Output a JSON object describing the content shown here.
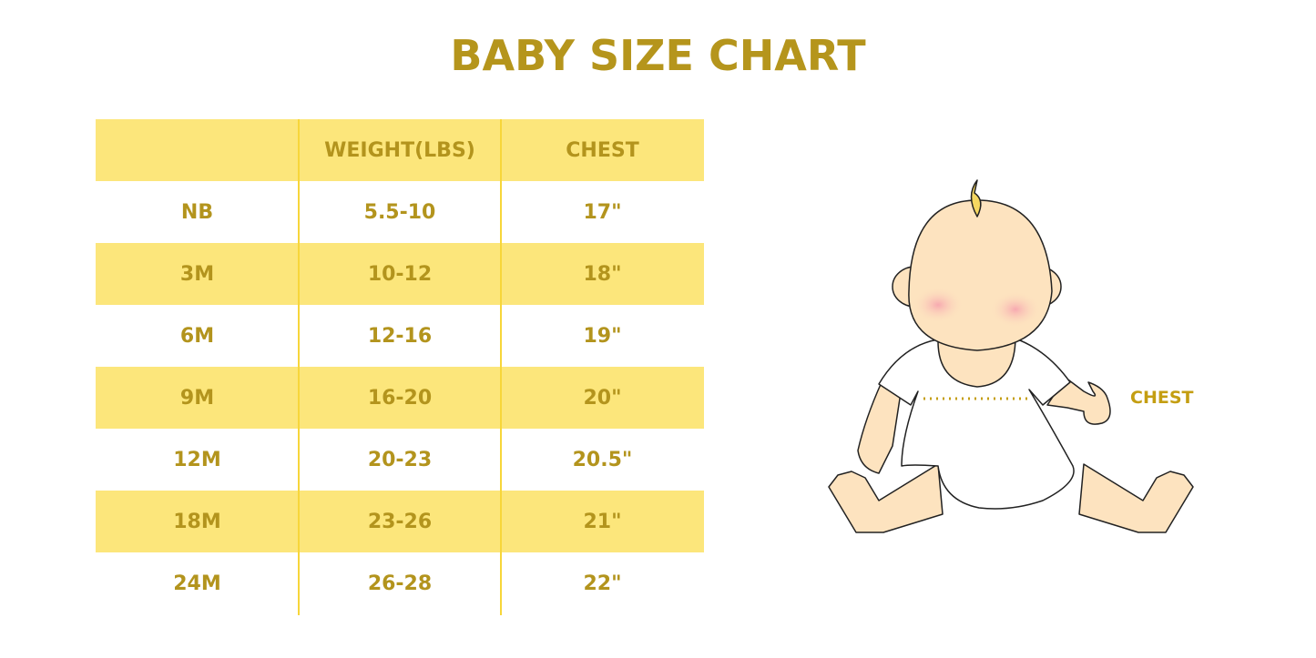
{
  "title": "BABY SIZE CHART",
  "table": {
    "headers": [
      "",
      "WEIGHT(LBS)",
      "CHEST"
    ],
    "rows": [
      [
        "NB",
        "5.5-10",
        "17\""
      ],
      [
        "3M",
        "10-12",
        "18\""
      ],
      [
        "6M",
        "12-16",
        "19\""
      ],
      [
        "9M",
        "16-20",
        "20\""
      ],
      [
        "12M",
        "20-23",
        "20.5\""
      ],
      [
        "18M",
        "23-26",
        "21\""
      ],
      [
        "24M",
        "26-28",
        "22\""
      ]
    ]
  },
  "illustration": {
    "chest_label": "CHEST"
  },
  "colors": {
    "text": "#b5951c",
    "band": "#fce67b",
    "divider": "#f7d63a"
  }
}
